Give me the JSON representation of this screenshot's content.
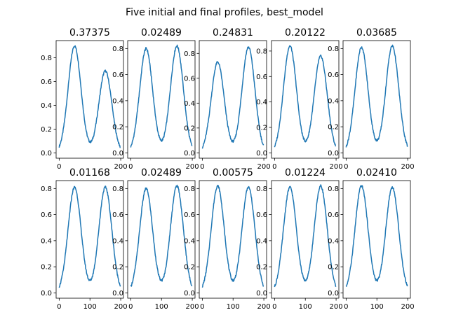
{
  "suptitle": "Five initial and final profiles, best_model",
  "chart_data": [
    {
      "type": "line",
      "title": "0.37375",
      "xlim": [
        -9.95,
        208.95
      ],
      "ylim": [
        -0.045,
        0.945
      ],
      "xticks": [
        0,
        200
      ],
      "xticklabels": [
        "0",
        "200"
      ],
      "yticks": [
        0.0,
        0.2,
        0.4,
        0.6,
        0.8
      ],
      "yticklabels": [
        "0.0",
        "0.2",
        "0.4",
        "0.6",
        "0.8"
      ],
      "color": "#1f77b4",
      "peaks": [
        {
          "center": 50,
          "width": 21,
          "height": 0.9
        },
        {
          "center": 150,
          "width": 21,
          "height": 0.69
        }
      ]
    },
    {
      "type": "line",
      "title": "0.02489",
      "xlim": [
        -9.95,
        208.95
      ],
      "ylim": [
        -0.041,
        0.861
      ],
      "xticks": [
        0,
        200
      ],
      "xticklabels": [
        "0",
        "200"
      ],
      "yticks": [
        0.0,
        0.2,
        0.4,
        0.6,
        0.8
      ],
      "yticklabels": [
        "0.0",
        "0.2",
        "0.4",
        "0.6",
        "0.8"
      ],
      "color": "#1f77b4",
      "peaks": [
        {
          "center": 50,
          "width": 21,
          "height": 0.8
        },
        {
          "center": 150,
          "width": 21,
          "height": 0.82
        }
      ]
    },
    {
      "type": "line",
      "title": "0.24831",
      "xlim": [
        -9.95,
        208.95
      ],
      "ylim": [
        -0.043,
        0.903
      ],
      "xticks": [
        0,
        200
      ],
      "xticklabels": [
        "0",
        "200"
      ],
      "yticks": [
        0.0,
        0.2,
        0.4,
        0.6,
        0.8
      ],
      "yticklabels": [
        "0.0",
        "0.2",
        "0.4",
        "0.6",
        "0.8"
      ],
      "color": "#1f77b4",
      "peaks": [
        {
          "center": 50,
          "width": 21,
          "height": 0.73
        },
        {
          "center": 150,
          "width": 21,
          "height": 0.85
        }
      ]
    },
    {
      "type": "line",
      "title": "0.20122",
      "xlim": [
        -9.95,
        208.95
      ],
      "ylim": [
        -0.042,
        0.882
      ],
      "xticks": [
        0,
        200
      ],
      "xticklabels": [
        "0",
        "200"
      ],
      "yticks": [
        0.0,
        0.2,
        0.4,
        0.6,
        0.8
      ],
      "yticklabels": [
        "0.0",
        "0.2",
        "0.4",
        "0.6",
        "0.8"
      ],
      "color": "#1f77b4",
      "peaks": [
        {
          "center": 50,
          "width": 21,
          "height": 0.84
        },
        {
          "center": 150,
          "width": 21,
          "height": 0.76
        }
      ]
    },
    {
      "type": "line",
      "title": "0.03685",
      "xlim": [
        -9.95,
        208.95
      ],
      "ylim": [
        -0.041,
        0.861
      ],
      "xticks": [
        0,
        200
      ],
      "xticklabels": [
        "0",
        "200"
      ],
      "yticks": [
        0.0,
        0.2,
        0.4,
        0.6,
        0.8
      ],
      "yticklabels": [
        "0.0",
        "0.2",
        "0.4",
        "0.6",
        "0.8"
      ],
      "color": "#1f77b4",
      "peaks": [
        {
          "center": 50,
          "width": 21,
          "height": 0.81
        },
        {
          "center": 150,
          "width": 21,
          "height": 0.82
        }
      ]
    },
    {
      "type": "line",
      "title": "0.01168",
      "xlim": [
        -9.95,
        208.95
      ],
      "ylim": [
        -0.041,
        0.861
      ],
      "xticks": [
        0,
        100,
        200
      ],
      "xticklabels": [
        "0",
        "100",
        "200"
      ],
      "yticks": [
        0.0,
        0.2,
        0.4,
        0.6,
        0.8
      ],
      "yticklabels": [
        "0.0",
        "0.2",
        "0.4",
        "0.6",
        "0.8"
      ],
      "color": "#1f77b4",
      "peaks": [
        {
          "center": 50,
          "width": 21,
          "height": 0.81
        },
        {
          "center": 150,
          "width": 21,
          "height": 0.81
        }
      ]
    },
    {
      "type": "line",
      "title": "0.02489",
      "xlim": [
        -9.95,
        208.95
      ],
      "ylim": [
        -0.041,
        0.861
      ],
      "xticks": [
        0,
        100,
        200
      ],
      "xticklabels": [
        "0",
        "100",
        "200"
      ],
      "yticks": [
        0.0,
        0.2,
        0.4,
        0.6,
        0.8
      ],
      "yticklabels": [
        "0.0",
        "0.2",
        "0.4",
        "0.6",
        "0.8"
      ],
      "color": "#1f77b4",
      "peaks": [
        {
          "center": 50,
          "width": 21,
          "height": 0.8
        },
        {
          "center": 150,
          "width": 21,
          "height": 0.82
        }
      ]
    },
    {
      "type": "line",
      "title": "0.00575",
      "xlim": [
        -9.95,
        208.95
      ],
      "ylim": [
        -0.041,
        0.861
      ],
      "xticks": [
        0,
        100,
        200
      ],
      "xticklabels": [
        "0",
        "100",
        "200"
      ],
      "yticks": [
        0.0,
        0.2,
        0.4,
        0.6,
        0.8
      ],
      "yticklabels": [
        "0.0",
        "0.2",
        "0.4",
        "0.6",
        "0.8"
      ],
      "color": "#1f77b4",
      "peaks": [
        {
          "center": 50,
          "width": 21,
          "height": 0.82
        },
        {
          "center": 150,
          "width": 21,
          "height": 0.81
        }
      ]
    },
    {
      "type": "line",
      "title": "0.01224",
      "xlim": [
        -9.95,
        208.95
      ],
      "ylim": [
        -0.041,
        0.861
      ],
      "xticks": [
        0,
        100,
        200
      ],
      "xticklabels": [
        "0",
        "100",
        "200"
      ],
      "yticks": [
        0.0,
        0.2,
        0.4,
        0.6,
        0.8
      ],
      "yticklabels": [
        "0.0",
        "0.2",
        "0.4",
        "0.6",
        "0.8"
      ],
      "color": "#1f77b4",
      "peaks": [
        {
          "center": 50,
          "width": 21,
          "height": 0.81
        },
        {
          "center": 150,
          "width": 21,
          "height": 0.82
        }
      ]
    },
    {
      "type": "line",
      "title": "0.02410",
      "xlim": [
        -9.95,
        208.95
      ],
      "ylim": [
        -0.041,
        0.861
      ],
      "xticks": [
        0,
        100,
        200
      ],
      "xticklabels": [
        "0",
        "100",
        "200"
      ],
      "yticks": [
        0.0,
        0.2,
        0.4,
        0.6,
        0.8
      ],
      "yticklabels": [
        "0.0",
        "0.2",
        "0.4",
        "0.6",
        "0.8"
      ],
      "color": "#1f77b4",
      "peaks": [
        {
          "center": 50,
          "width": 21,
          "height": 0.82
        },
        {
          "center": 150,
          "width": 21,
          "height": 0.81
        }
      ]
    }
  ]
}
